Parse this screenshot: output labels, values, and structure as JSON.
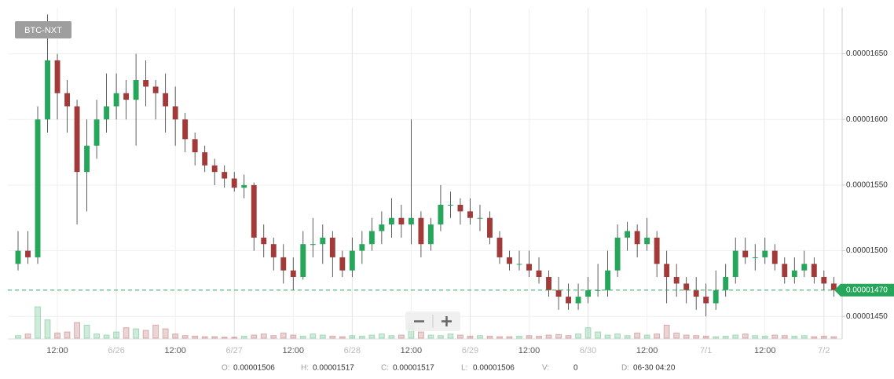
{
  "chart_data": {
    "type": "candlestick",
    "symbol": "BTC-NXT",
    "categories": [
      null,
      null,
      null,
      null,
      "12:00",
      null,
      null,
      null,
      null,
      null,
      "6/26",
      null,
      null,
      null,
      null,
      null,
      "12:00",
      null,
      null,
      null,
      null,
      null,
      "6/27",
      null,
      null,
      null,
      null,
      null,
      "12:00",
      null,
      null,
      null,
      null,
      null,
      "6/28",
      null,
      null,
      null,
      null,
      null,
      "12:00",
      null,
      null,
      null,
      null,
      null,
      "6/29",
      null,
      null,
      null,
      null,
      null,
      "12:00",
      null,
      null,
      null,
      null,
      null,
      "6/30",
      null,
      null,
      null,
      null,
      null,
      "12:00",
      null,
      null,
      null,
      null,
      null,
      "7/1",
      null,
      null,
      null,
      null,
      null,
      "12:00",
      null,
      null,
      null,
      null,
      null,
      "7/2",
      null
    ],
    "open": [
      1.49e-05,
      1.5e-05,
      1.495e-05,
      1.6e-05,
      1.645e-05,
      1.62e-05,
      1.61e-05,
      1.56e-05,
      1.58e-05,
      1.6e-05,
      1.61e-05,
      1.62e-05,
      1.615e-05,
      1.63e-05,
      1.625e-05,
      1.62e-05,
      1.61e-05,
      1.6e-05,
      1.585e-05,
      1.575e-05,
      1.565e-05,
      1.56e-05,
      1.555e-05,
      1.548e-05,
      1.55e-05,
      1.51e-05,
      1.505e-05,
      1.495e-05,
      1.485e-05,
      1.48e-05,
      1.505e-05,
      1.505e-05,
      1.51e-05,
      1.495e-05,
      1.485e-05,
      1.5e-05,
      1.505e-05,
      1.515e-05,
      1.52e-05,
      1.525e-05,
      1.52e-05,
      1.525e-05,
      1.505e-05,
      1.52e-05,
      1.535e-05,
      1.535e-05,
      1.53e-05,
      1.525e-05,
      1.525e-05,
      1.51e-05,
      1.495e-05,
      1.49e-05,
      1.49e-05,
      1.485e-05,
      1.48e-05,
      1.47e-05,
      1.465e-05,
      1.46e-05,
      1.465e-05,
      1.47e-05,
      1.47e-05,
      1.485e-05,
      1.51e-05,
      1.515e-05,
      1.505e-05,
      1.51e-05,
      1.49e-05,
      1.48e-05,
      1.475e-05,
      1.47e-05,
      1.465e-05,
      1.46e-05,
      1.47e-05,
      1.48e-05,
      1.5e-05,
      1.495e-05,
      1.495e-05,
      1.5e-05,
      1.49e-05,
      1.48e-05,
      1.485e-05,
      1.49e-05,
      1.48e-05,
      1.475e-05
    ],
    "high": [
      1.515e-05,
      1.515e-05,
      1.61e-05,
      1.68e-05,
      1.65e-05,
      1.63e-05,
      1.615e-05,
      1.6e-05,
      1.615e-05,
      1.635e-05,
      1.635e-05,
      1.63e-05,
      1.65e-05,
      1.645e-05,
      1.63e-05,
      1.635e-05,
      1.625e-05,
      1.605e-05,
      1.59e-05,
      1.58e-05,
      1.57e-05,
      1.565e-05,
      1.56e-05,
      1.558e-05,
      1.552e-05,
      1.52e-05,
      1.51e-05,
      1.505e-05,
      1.495e-05,
      1.515e-05,
      1.525e-05,
      1.52e-05,
      1.515e-05,
      1.5e-05,
      1.51e-05,
      1.515e-05,
      1.525e-05,
      1.53e-05,
      1.54e-05,
      1.535e-05,
      1.6e-05,
      1.53e-05,
      1.525e-05,
      1.55e-05,
      1.545e-05,
      1.54e-05,
      1.54e-05,
      1.535e-05,
      1.53e-05,
      1.515e-05,
      1.5e-05,
      1.5e-05,
      1.5e-05,
      1.495e-05,
      1.485e-05,
      1.48e-05,
      1.475e-05,
      1.475e-05,
      1.48e-05,
      1.49e-05,
      1.5e-05,
      1.52e-05,
      1.522e-05,
      1.52e-05,
      1.525e-05,
      1.515e-05,
      1.5e-05,
      1.49e-05,
      1.48e-05,
      1.48e-05,
      1.475e-05,
      1.485e-05,
      1.49e-05,
      1.51e-05,
      1.51e-05,
      1.505e-05,
      1.51e-05,
      1.505e-05,
      1.495e-05,
      1.495e-05,
      1.5e-05,
      1.495e-05,
      1.485e-05,
      1.48e-05
    ],
    "low": [
      1.485e-05,
      1.49e-05,
      1.49e-05,
      1.59e-05,
      1.6e-05,
      1.59e-05,
      1.52e-05,
      1.53e-05,
      1.57e-05,
      1.59e-05,
      1.6e-05,
      1.6e-05,
      1.58e-05,
      1.61e-05,
      1.6e-05,
      1.59e-05,
      1.58e-05,
      1.575e-05,
      1.565e-05,
      1.56e-05,
      1.55e-05,
      1.548e-05,
      1.545e-05,
      1.54e-05,
      1.5e-05,
      1.495e-05,
      1.485e-05,
      1.475e-05,
      1.47e-05,
      1.478e-05,
      1.495e-05,
      1.49e-05,
      1.48e-05,
      1.48e-05,
      1.48e-05,
      1.49e-05,
      1.5e-05,
      1.505e-05,
      1.51e-05,
      1.51e-05,
      1.505e-05,
      1.495e-05,
      1.5e-05,
      1.515e-05,
      1.525e-05,
      1.52e-05,
      1.52e-05,
      1.515e-05,
      1.505e-05,
      1.49e-05,
      1.485e-05,
      1.485e-05,
      1.48e-05,
      1.475e-05,
      1.465e-05,
      1.455e-05,
      1.455e-05,
      1.455e-05,
      1.46e-05,
      1.465e-05,
      1.465e-05,
      1.48e-05,
      1.5e-05,
      1.495e-05,
      1.5e-05,
      1.48e-05,
      1.46e-05,
      1.465e-05,
      1.46e-05,
      1.455e-05,
      1.45e-05,
      1.455e-05,
      1.465e-05,
      1.475e-05,
      1.49e-05,
      1.485e-05,
      1.49e-05,
      1.485e-05,
      1.475e-05,
      1.475e-05,
      1.48e-05,
      1.475e-05,
      1.47e-05,
      1.465e-05
    ],
    "close": [
      1.5e-05,
      1.495e-05,
      1.6e-05,
      1.645e-05,
      1.62e-05,
      1.61e-05,
      1.56e-05,
      1.58e-05,
      1.6e-05,
      1.61e-05,
      1.62e-05,
      1.615e-05,
      1.63e-05,
      1.625e-05,
      1.62e-05,
      1.61e-05,
      1.6e-05,
      1.585e-05,
      1.575e-05,
      1.565e-05,
      1.56e-05,
      1.555e-05,
      1.548e-05,
      1.55e-05,
      1.51e-05,
      1.505e-05,
      1.495e-05,
      1.485e-05,
      1.48e-05,
      1.505e-05,
      1.505e-05,
      1.51e-05,
      1.495e-05,
      1.485e-05,
      1.5e-05,
      1.505e-05,
      1.515e-05,
      1.52e-05,
      1.525e-05,
      1.52e-05,
      1.525e-05,
      1.505e-05,
      1.52e-05,
      1.535e-05,
      1.535e-05,
      1.53e-05,
      1.525e-05,
      1.525e-05,
      1.51e-05,
      1.495e-05,
      1.49e-05,
      1.49e-05,
      1.485e-05,
      1.48e-05,
      1.47e-05,
      1.465e-05,
      1.46e-05,
      1.465e-05,
      1.47e-05,
      1.47e-05,
      1.485e-05,
      1.51e-05,
      1.515e-05,
      1.505e-05,
      1.51e-05,
      1.49e-05,
      1.48e-05,
      1.475e-05,
      1.47e-05,
      1.465e-05,
      1.46e-05,
      1.47e-05,
      1.48e-05,
      1.5e-05,
      1.495e-05,
      1.495e-05,
      1.5e-05,
      1.49e-05,
      1.48e-05,
      1.485e-05,
      1.49e-05,
      1.48e-05,
      1.475e-05,
      1.47e-05
    ],
    "volume": [
      5,
      8,
      60,
      35,
      10,
      12,
      30,
      25,
      8,
      6,
      12,
      20,
      18,
      15,
      25,
      18,
      8,
      5,
      4,
      3,
      3,
      2,
      2,
      4,
      6,
      8,
      5,
      10,
      6,
      4,
      8,
      6,
      4,
      3,
      5,
      4,
      6,
      8,
      5,
      6,
      28,
      12,
      6,
      5,
      8,
      6,
      4,
      5,
      4,
      3,
      3,
      4,
      5,
      4,
      6,
      7,
      5,
      8,
      20,
      12,
      6,
      8,
      5,
      10,
      6,
      8,
      25,
      10,
      6,
      5,
      4,
      3,
      4,
      6,
      8,
      5,
      4,
      6,
      5,
      4,
      5,
      3,
      4,
      3
    ],
    "up_color": "#26a65b",
    "down_color": "#a23a3a",
    "ylim": [
      1.434e-05,
      1.685e-05
    ],
    "yticks": [
      {
        "value": 1.45e-05,
        "label": "0.00001450"
      },
      {
        "value": 1.5e-05,
        "label": "0.00001500"
      },
      {
        "value": 1.55e-05,
        "label": "0.00001550"
      },
      {
        "value": 1.6e-05,
        "label": "0.00001600"
      },
      {
        "value": 1.65e-05,
        "label": "0.00001650"
      }
    ],
    "grid": true,
    "last_price": {
      "value": 1.47e-05,
      "label": "0.00001470"
    },
    "info": [
      {
        "label": "O:",
        "value": "0.00001506"
      },
      {
        "label": "H:",
        "value": "0.00001517"
      },
      {
        "label": "C:",
        "value": "0.00001517"
      },
      {
        "label": "L:",
        "value": "0.00001506"
      },
      {
        "label": "V:",
        "value": "0"
      },
      {
        "label": "D:",
        "value": "06-30 04:20"
      }
    ]
  }
}
